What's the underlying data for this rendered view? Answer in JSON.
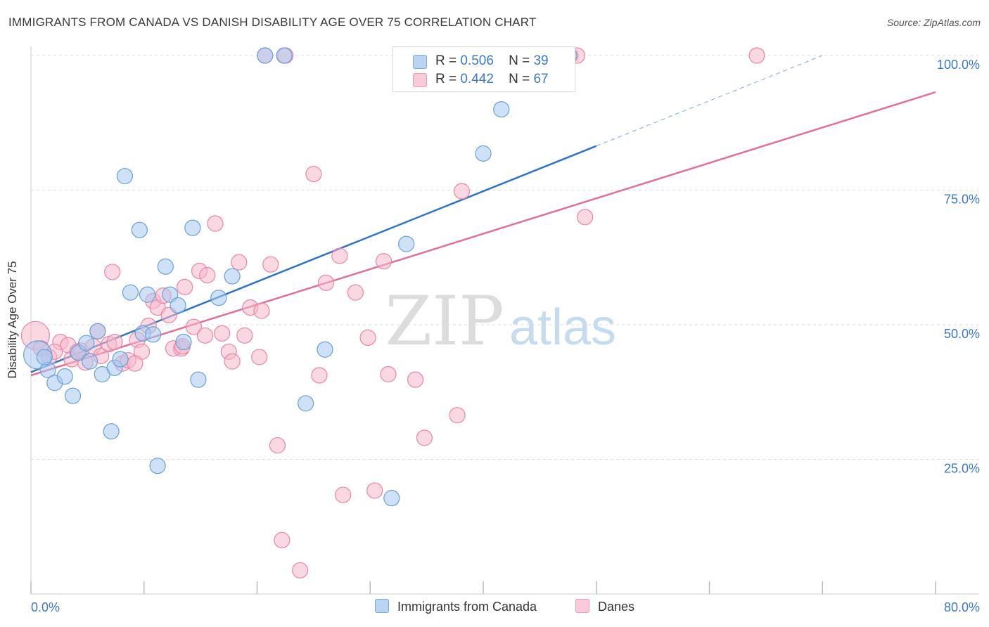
{
  "header": {
    "title": "IMMIGRANTS FROM CANADA VS DANISH DISABILITY AGE OVER 75 CORRELATION CHART",
    "source": "Source: ZipAtlas.com"
  },
  "watermark": {
    "zip": "ZIP",
    "atlas": "atlas"
  },
  "legend": {
    "rows": [
      {
        "r_label": "R =",
        "r_value": "0.506",
        "n_label": "N =",
        "n_value": "39"
      },
      {
        "r_label": "R =",
        "r_value": "0.442",
        "n_label": "N =",
        "n_value": "67"
      }
    ]
  },
  "colors": {
    "blue_fill": "#a8c8f0",
    "blue_stroke": "#6a9fd8",
    "blue_line": "#2f74c8",
    "pink_fill": "#f6b8cb",
    "pink_stroke": "#e886a6",
    "pink_line": "#e0709a",
    "axis_text": "#3a78c9",
    "grid": "#dddddd"
  },
  "chart_data": {
    "type": "scatter",
    "title": "IMMIGRANTS FROM CANADA VS DANISH DISABILITY AGE OVER 75 CORRELATION CHART",
    "xlabel": "",
    "ylabel": "Disability Age Over 75",
    "xlim": [
      0,
      80
    ],
    "ylim": [
      0,
      100
    ],
    "x_tick_labels": [
      "0.0%",
      "80.0%"
    ],
    "y_ticks": [
      25,
      50,
      75,
      100
    ],
    "y_tick_labels": [
      "25.0%",
      "50.0%",
      "75.0%",
      "100.0%"
    ],
    "grid": "horizontal dashed",
    "legend_position": "top-center",
    "series": [
      {
        "name": "Immigrants from Canada",
        "r": 0.506,
        "n": 39,
        "trend": {
          "x0": 0,
          "y0": 41.2,
          "x1": 50,
          "y1": 83.2,
          "dashed_to_x": 70,
          "dashed_to_y": 100
        },
        "points": [
          [
            0.6,
            44.4,
            20
          ],
          [
            1.5,
            41.6,
            11
          ],
          [
            2.1,
            39.2,
            11
          ],
          [
            1.2,
            44.0,
            11
          ],
          [
            3.0,
            40.4,
            11
          ],
          [
            3.7,
            36.8,
            11
          ],
          [
            4.2,
            44.8,
            11
          ],
          [
            4.9,
            46.6,
            11
          ],
          [
            5.2,
            43.2,
            11
          ],
          [
            5.9,
            48.8,
            11
          ],
          [
            6.3,
            40.8,
            11
          ],
          [
            7.1,
            30.2,
            11
          ],
          [
            7.4,
            42.0,
            11
          ],
          [
            7.9,
            43.6,
            11
          ],
          [
            8.3,
            77.6,
            11
          ],
          [
            8.8,
            56.0,
            11
          ],
          [
            9.6,
            67.6,
            11
          ],
          [
            9.9,
            48.4,
            11
          ],
          [
            10.3,
            55.6,
            11
          ],
          [
            10.8,
            48.2,
            11
          ],
          [
            11.2,
            23.8,
            11
          ],
          [
            11.9,
            60.8,
            11
          ],
          [
            12.3,
            55.6,
            11
          ],
          [
            13.0,
            53.6,
            11
          ],
          [
            13.5,
            46.8,
            11
          ],
          [
            14.3,
            68.0,
            11
          ],
          [
            14.8,
            39.8,
            11
          ],
          [
            16.6,
            55.0,
            11
          ],
          [
            17.8,
            59.0,
            11
          ],
          [
            20.7,
            100.0,
            11
          ],
          [
            24.3,
            35.4,
            11
          ],
          [
            26.0,
            45.4,
            11
          ],
          [
            31.9,
            17.8,
            11
          ],
          [
            33.2,
            65.0,
            11
          ],
          [
            34.1,
            100.0,
            11
          ],
          [
            40.0,
            81.8,
            11
          ],
          [
            41.6,
            90.0,
            11
          ],
          [
            47.6,
            100.0,
            11
          ],
          [
            22.4,
            100.0,
            11
          ]
        ]
      },
      {
        "name": "Danes",
        "r": 0.442,
        "n": 67,
        "trend": {
          "x0": 0,
          "y0": 40.6,
          "x1": 80,
          "y1": 93.2
        },
        "points": [
          [
            0.4,
            48.0,
            20
          ],
          [
            0.9,
            45.6,
            11
          ],
          [
            1.6,
            44.0,
            11
          ],
          [
            2.6,
            46.8,
            11
          ],
          [
            3.3,
            46.2,
            11
          ],
          [
            3.6,
            43.6,
            11
          ],
          [
            4.4,
            45.2,
            11
          ],
          [
            4.8,
            43.0,
            11
          ],
          [
            5.5,
            46.0,
            11
          ],
          [
            5.9,
            48.8,
            11
          ],
          [
            6.2,
            44.2,
            11
          ],
          [
            6.9,
            46.4,
            11
          ],
          [
            7.2,
            59.8,
            11
          ],
          [
            7.4,
            46.8,
            11
          ],
          [
            8.1,
            42.8,
            11
          ],
          [
            8.6,
            43.4,
            11
          ],
          [
            9.4,
            47.2,
            11
          ],
          [
            9.8,
            45.0,
            11
          ],
          [
            10.4,
            49.8,
            11
          ],
          [
            10.8,
            54.4,
            11
          ],
          [
            11.2,
            53.2,
            11
          ],
          [
            11.7,
            55.4,
            11
          ],
          [
            12.2,
            51.8,
            11
          ],
          [
            12.6,
            45.6,
            11
          ],
          [
            13.3,
            45.6,
            11
          ],
          [
            13.6,
            57.0,
            11
          ],
          [
            14.4,
            49.6,
            11
          ],
          [
            14.9,
            60.0,
            11
          ],
          [
            15.4,
            48.0,
            11
          ],
          [
            15.6,
            59.2,
            11
          ],
          [
            16.3,
            68.8,
            11
          ],
          [
            16.9,
            48.4,
            11
          ],
          [
            17.5,
            45.0,
            11
          ],
          [
            17.8,
            43.2,
            11
          ],
          [
            18.4,
            61.6,
            11
          ],
          [
            18.9,
            48.0,
            11
          ],
          [
            19.4,
            53.2,
            11
          ],
          [
            20.2,
            44.0,
            11
          ],
          [
            20.4,
            52.6,
            11
          ],
          [
            21.2,
            61.2,
            11
          ],
          [
            21.8,
            27.6,
            11
          ],
          [
            22.2,
            10.0,
            11
          ],
          [
            22.5,
            100.0,
            11
          ],
          [
            23.8,
            4.4,
            11
          ],
          [
            25.0,
            78.0,
            11
          ],
          [
            25.5,
            40.6,
            11
          ],
          [
            26.1,
            57.8,
            11
          ],
          [
            27.3,
            62.8,
            11
          ],
          [
            27.6,
            18.4,
            11
          ],
          [
            28.7,
            56.0,
            11
          ],
          [
            29.8,
            47.6,
            11
          ],
          [
            30.4,
            19.2,
            11
          ],
          [
            31.2,
            61.8,
            11
          ],
          [
            31.6,
            40.8,
            11
          ],
          [
            34.0,
            39.8,
            11
          ],
          [
            34.8,
            29.0,
            11
          ],
          [
            37.7,
            33.2,
            11
          ],
          [
            38.1,
            74.8,
            11
          ],
          [
            47.7,
            100.0,
            11
          ],
          [
            48.3,
            100.0,
            11
          ],
          [
            49.0,
            70.0,
            11
          ],
          [
            64.2,
            100.0,
            11
          ],
          [
            20.7,
            100.0,
            11
          ],
          [
            4.1,
            45.0,
            11
          ],
          [
            9.2,
            42.8,
            11
          ],
          [
            13.4,
            46.0,
            11
          ],
          [
            2.1,
            45.0,
            11
          ]
        ]
      }
    ]
  }
}
